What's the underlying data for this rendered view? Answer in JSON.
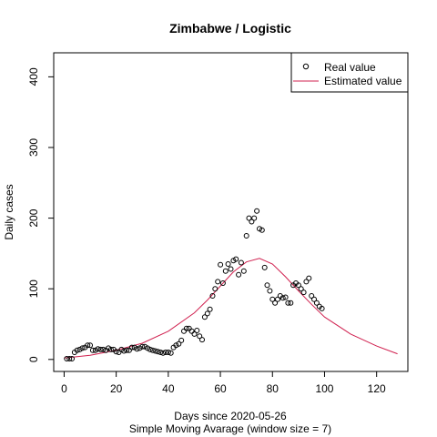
{
  "chart_data": {
    "type": "scatter",
    "title": "Zimbabwe / Logistic",
    "xlabel": "Days since 2020-05-26",
    "subtitle": "Simple Moving Avarage (window size = 7)",
    "ylabel": "Daily cases",
    "xlim": [
      -4,
      132
    ],
    "ylim": [
      -17,
      434
    ],
    "xticks": [
      0,
      20,
      40,
      60,
      80,
      100,
      120
    ],
    "yticks": [
      0,
      100,
      200,
      300,
      400
    ],
    "legend": {
      "placement": "top-right",
      "entries": [
        "Real value",
        "Estimated value"
      ]
    },
    "colors": {
      "real": "#000000",
      "estimated": "#d0204f"
    },
    "series": [
      {
        "name": "Real value",
        "kind": "points",
        "x": [
          1,
          2,
          3,
          4,
          5,
          6,
          7,
          8,
          9,
          10,
          11,
          12,
          13,
          14,
          15,
          16,
          17,
          18,
          19,
          20,
          21,
          22,
          23,
          24,
          25,
          26,
          27,
          28,
          29,
          30,
          31,
          32,
          33,
          34,
          35,
          36,
          37,
          38,
          39,
          40,
          41,
          42,
          43,
          44,
          45,
          46,
          47,
          48,
          49,
          50,
          51,
          52,
          53,
          54,
          55,
          56,
          57,
          58,
          59,
          60,
          61,
          62,
          63,
          64,
          65,
          66,
          67,
          68,
          69,
          70,
          71,
          72,
          73,
          74,
          75,
          76,
          77,
          78,
          79,
          80,
          81,
          82,
          83,
          84,
          85,
          86,
          87,
          88,
          89,
          90,
          91,
          92,
          93,
          94,
          95,
          96,
          97,
          98,
          99
        ],
        "y": [
          1,
          1,
          1,
          10,
          13,
          14,
          16,
          17,
          20,
          20,
          13,
          13,
          15,
          14,
          14,
          13,
          16,
          14,
          14,
          11,
          10,
          14,
          12,
          13,
          13,
          17,
          17,
          15,
          16,
          18,
          18,
          16,
          14,
          13,
          12,
          11,
          10,
          9,
          10,
          10,
          9,
          17,
          20,
          22,
          27,
          40,
          44,
          44,
          40,
          36,
          41,
          33,
          28,
          60,
          65,
          71,
          90,
          100,
          110,
          134,
          108,
          125,
          135,
          128,
          140,
          142,
          120,
          137,
          125,
          175,
          200,
          195,
          200,
          210,
          185,
          183,
          130,
          105,
          97,
          85,
          80,
          85,
          90,
          87,
          88,
          80,
          80,
          105,
          108,
          105,
          100,
          95,
          110,
          115,
          90,
          85,
          80,
          75,
          72
        ]
      },
      {
        "name": "Estimated value",
        "kind": "line",
        "x": [
          0,
          10,
          20,
          30,
          40,
          50,
          55,
          60,
          65,
          70,
          75,
          80,
          85,
          90,
          95,
          100,
          110,
          120,
          128
        ],
        "y": [
          2,
          6,
          13,
          23,
          40,
          66,
          84,
          104,
          124,
          138,
          143,
          135,
          117,
          97,
          78,
          60,
          36,
          19,
          8
        ]
      }
    ]
  }
}
